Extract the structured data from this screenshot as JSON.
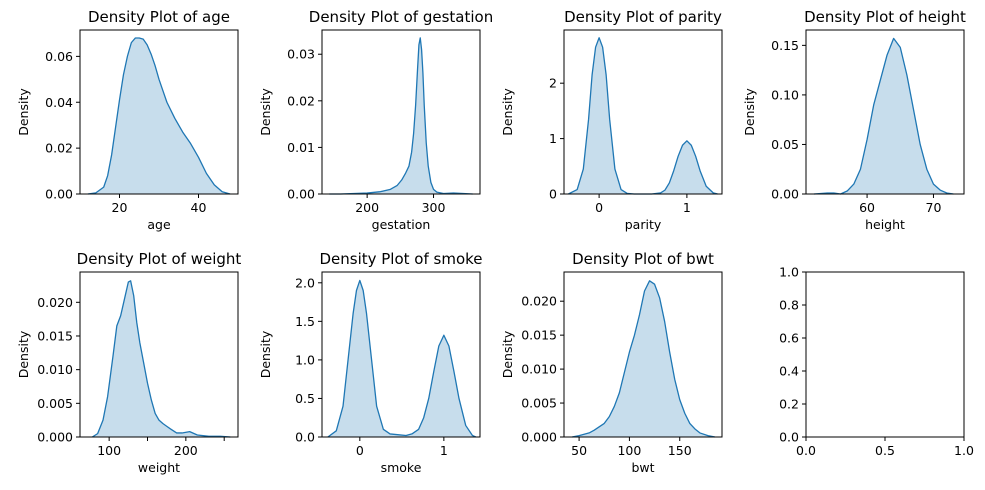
{
  "figure": {
    "colors": {
      "line": "#1f77b4",
      "fill": "#1f77b4",
      "fill_opacity": 0.25,
      "axes": "#000000",
      "background": "#ffffff"
    },
    "layout": "grid 2x4"
  },
  "chart_data": [
    {
      "type": "area",
      "title": "Density Plot of age",
      "xlabel": "age",
      "ylabel": "Density",
      "xlim": [
        10,
        50
      ],
      "ylim": [
        0,
        0.0715
      ],
      "xticks": [
        20,
        40
      ],
      "xtick_labels": [
        "20",
        "40"
      ],
      "yticks": [
        0,
        0.02,
        0.04,
        0.06
      ],
      "ytick_labels": [
        "0.00",
        "0.02",
        "0.04",
        "0.06"
      ],
      "x": [
        12,
        14,
        16,
        17,
        18,
        19,
        20,
        21,
        22,
        23,
        24,
        25,
        26,
        27,
        28,
        29,
        30,
        31,
        32,
        34,
        36,
        38,
        40,
        42,
        44,
        46,
        48
      ],
      "y": [
        0,
        0.0005,
        0.003,
        0.008,
        0.017,
        0.029,
        0.041,
        0.052,
        0.06,
        0.066,
        0.068,
        0.068,
        0.0675,
        0.065,
        0.061,
        0.056,
        0.05,
        0.045,
        0.04,
        0.033,
        0.027,
        0.022,
        0.016,
        0.009,
        0.004,
        0.001,
        0
      ]
    },
    {
      "type": "area",
      "title": "Density Plot of gestation",
      "xlabel": "gestation",
      "ylabel": "Density",
      "xlim": [
        132,
        370
      ],
      "ylim": [
        0,
        0.0352
      ],
      "xticks": [
        200,
        300
      ],
      "xtick_labels": [
        "200",
        "300"
      ],
      "yticks": [
        0,
        0.01,
        0.02,
        0.03
      ],
      "ytick_labels": [
        "0.00",
        "0.01",
        "0.02",
        "0.03"
      ],
      "x": [
        143,
        160,
        180,
        200,
        220,
        235,
        245,
        252,
        258,
        263,
        267,
        270,
        273,
        276,
        278,
        280,
        282,
        284,
        286,
        289,
        292,
        296,
        300,
        305,
        315,
        330,
        345,
        359
      ],
      "y": [
        0,
        0,
        0.0001,
        0.0002,
        0.0005,
        0.001,
        0.0018,
        0.003,
        0.0045,
        0.006,
        0.009,
        0.013,
        0.019,
        0.027,
        0.032,
        0.0335,
        0.031,
        0.026,
        0.019,
        0.011,
        0.006,
        0.0025,
        0.001,
        0.0004,
        0.0001,
        0.0002,
        0.0001,
        0
      ]
    },
    {
      "type": "area",
      "title": "Density Plot of parity",
      "xlabel": "parity",
      "ylabel": "Density",
      "xlim": [
        -0.4,
        1.4
      ],
      "ylim": [
        0,
        2.96
      ],
      "xticks": [
        0,
        1
      ],
      "xtick_labels": [
        "0",
        "1"
      ],
      "yticks": [
        0,
        1,
        2
      ],
      "ytick_labels": [
        "0",
        "1",
        "2"
      ],
      "x": [
        -0.35,
        -0.25,
        -0.18,
        -0.12,
        -0.08,
        -0.04,
        0,
        0.04,
        0.08,
        0.12,
        0.18,
        0.25,
        0.32,
        0.4,
        0.5,
        0.6,
        0.7,
        0.75,
        0.8,
        0.85,
        0.9,
        0.95,
        1.0,
        1.05,
        1.1,
        1.15,
        1.22,
        1.3,
        1.35
      ],
      "y": [
        0,
        0.08,
        0.45,
        1.35,
        2.15,
        2.65,
        2.82,
        2.65,
        2.15,
        1.35,
        0.45,
        0.08,
        0.01,
        0,
        0,
        0,
        0.02,
        0.07,
        0.2,
        0.42,
        0.68,
        0.88,
        0.96,
        0.88,
        0.68,
        0.42,
        0.14,
        0.02,
        0
      ]
    },
    {
      "type": "area",
      "title": "Density Plot of height",
      "xlabel": "height",
      "ylabel": "Density",
      "xlim": [
        50.8,
        74.6
      ],
      "ylim": [
        0,
        0.1655
      ],
      "xticks": [
        60,
        70
      ],
      "xtick_labels": [
        "60",
        "70"
      ],
      "yticks": [
        0,
        0.05,
        0.1,
        0.15
      ],
      "ytick_labels": [
        "0.00",
        "0.05",
        "0.10",
        "0.15"
      ],
      "x": [
        52,
        54,
        55,
        56,
        57,
        58,
        59,
        60,
        61,
        62,
        63,
        64,
        65,
        66,
        67,
        68,
        69,
        70,
        71,
        72,
        73
      ],
      "y": [
        0,
        0.001,
        0.001,
        0,
        0.003,
        0.01,
        0.025,
        0.055,
        0.09,
        0.115,
        0.14,
        0.157,
        0.148,
        0.12,
        0.085,
        0.05,
        0.025,
        0.01,
        0.004,
        0.001,
        0
      ]
    },
    {
      "type": "area",
      "title": "Density Plot of weight",
      "xlabel": "weight",
      "ylabel": "Density",
      "xlim": [
        62,
        268
      ],
      "ylim": [
        0,
        0.0245
      ],
      "xticks": [
        100,
        150,
        200,
        250
      ],
      "xtick_labels": [
        "100",
        "",
        "200",
        ""
      ],
      "yticks": [
        0,
        0.005,
        0.01,
        0.015,
        0.02
      ],
      "ytick_labels": [
        "0.000",
        "0.005",
        "0.010",
        "0.015",
        "0.020"
      ],
      "x": [
        78,
        85,
        92,
        98,
        105,
        110,
        115,
        120,
        125,
        128,
        132,
        136,
        140,
        145,
        150,
        155,
        160,
        165,
        170,
        175,
        180,
        188,
        195,
        205,
        215,
        230,
        245,
        258
      ],
      "y": [
        0,
        0.0005,
        0.0025,
        0.006,
        0.012,
        0.0165,
        0.018,
        0.0205,
        0.023,
        0.0232,
        0.021,
        0.017,
        0.014,
        0.011,
        0.008,
        0.0055,
        0.0035,
        0.0025,
        0.002,
        0.0016,
        0.0012,
        0.0006,
        0.0006,
        0.0008,
        0.0003,
        0.0001,
        0.0001,
        0
      ]
    },
    {
      "type": "area",
      "title": "Density Plot of smoke",
      "xlabel": "smoke",
      "ylabel": "Density",
      "xlim": [
        -0.45,
        1.43
      ],
      "ylim": [
        0,
        2.14
      ],
      "xticks": [
        0,
        1
      ],
      "xtick_labels": [
        "0",
        "1"
      ],
      "yticks": [
        0,
        0.5,
        1.0,
        1.5,
        2.0
      ],
      "ytick_labels": [
        "0.0",
        "0.5",
        "1.0",
        "1.5",
        "2.0"
      ],
      "x": [
        -0.38,
        -0.28,
        -0.2,
        -0.14,
        -0.08,
        -0.04,
        0,
        0.04,
        0.08,
        0.14,
        0.2,
        0.28,
        0.36,
        0.45,
        0.55,
        0.62,
        0.7,
        0.76,
        0.82,
        0.88,
        0.94,
        1.0,
        1.06,
        1.12,
        1.18,
        1.26,
        1.34,
        1.38
      ],
      "y": [
        0,
        0.08,
        0.4,
        1.0,
        1.6,
        1.9,
        2.03,
        1.9,
        1.6,
        1.0,
        0.4,
        0.1,
        0.04,
        0.03,
        0.02,
        0.04,
        0.1,
        0.25,
        0.5,
        0.85,
        1.18,
        1.32,
        1.18,
        0.85,
        0.5,
        0.15,
        0.02,
        0
      ]
    },
    {
      "type": "area",
      "title": "Density Plot of bwt",
      "xlabel": "bwt",
      "ylabel": "Density",
      "xlim": [
        35,
        192
      ],
      "ylim": [
        0,
        0.0243
      ],
      "xticks": [
        50,
        100,
        150
      ],
      "xtick_labels": [
        "50",
        "100",
        "150"
      ],
      "yticks": [
        0,
        0.005,
        0.01,
        0.015,
        0.02
      ],
      "ytick_labels": [
        "0.000",
        "0.005",
        "0.010",
        "0.015",
        "0.020"
      ],
      "x": [
        43,
        50,
        55,
        60,
        65,
        70,
        75,
        80,
        85,
        90,
        95,
        100,
        105,
        110,
        115,
        120,
        125,
        130,
        135,
        140,
        145,
        150,
        155,
        160,
        165,
        170,
        178,
        185
      ],
      "y": [
        0,
        0.0002,
        0.0004,
        0.0006,
        0.001,
        0.0015,
        0.002,
        0.003,
        0.0045,
        0.0065,
        0.0095,
        0.0125,
        0.015,
        0.018,
        0.0215,
        0.023,
        0.0225,
        0.0205,
        0.017,
        0.0125,
        0.0085,
        0.0055,
        0.0035,
        0.002,
        0.0012,
        0.0006,
        0.0002,
        0
      ]
    },
    {
      "type": "line",
      "title": "",
      "xlabel": "",
      "ylabel": "",
      "xlim": [
        0,
        1
      ],
      "ylim": [
        0,
        1
      ],
      "xticks": [
        0,
        0.5,
        1
      ],
      "xtick_labels": [
        "0.0",
        "0.5",
        "1.0"
      ],
      "yticks": [
        0,
        0.2,
        0.4,
        0.6,
        0.8,
        1.0
      ],
      "ytick_labels": [
        "0.0",
        "0.2",
        "0.4",
        "0.6",
        "0.8",
        "1.0"
      ],
      "x": [],
      "y": []
    }
  ]
}
